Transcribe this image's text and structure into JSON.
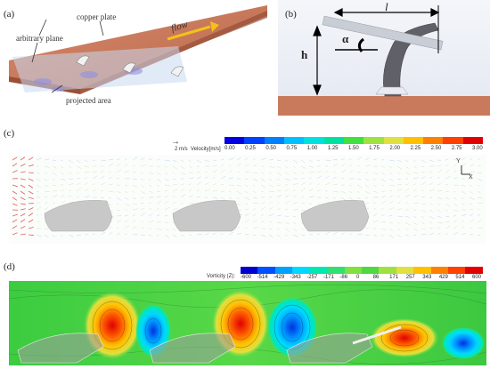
{
  "panels": {
    "a": {
      "label": "(a)",
      "copper_plate": "copper plate",
      "arbitrary_plane": "arbitrary plane",
      "flow": "flow",
      "projected_area": "projected area"
    },
    "b": {
      "label": "(b)",
      "length_symbol": "l",
      "height_symbol": "h",
      "angle_symbol": "α"
    },
    "c": {
      "label": "(c)",
      "scale_text": "2 m/s",
      "colorbar_title": "Velocity[m/s]",
      "ticks": [
        "0.00",
        "0.25",
        "0.50",
        "0.75",
        "1.00",
        "1.25",
        "1.50",
        "1.75",
        "2.00",
        "2.25",
        "2.50",
        "2.75",
        "3.00"
      ],
      "axis_y": "Y",
      "axis_x": "X"
    },
    "d": {
      "label": "(d)",
      "colorbar_title": "Vorticity (Z):",
      "ticks": [
        "-600",
        "-514",
        "-429",
        "-343",
        "-257",
        "-171",
        "-86",
        "0",
        "86",
        "171",
        "257",
        "343",
        "429",
        "514",
        "600"
      ]
    }
  },
  "colors": {
    "copper": "#c97a5c",
    "velocity_scale": [
      "#0000e0",
      "#0040ff",
      "#0080ff",
      "#00c0ff",
      "#00e0e0",
      "#00e0a0",
      "#40e040",
      "#a0e040",
      "#e0e040",
      "#ffc000",
      "#ff8000",
      "#ff4000",
      "#e00000"
    ],
    "vorticity_scale": [
      "#0000d0",
      "#0050ff",
      "#00a0ff",
      "#00d8ff",
      "#00e8b0",
      "#30e070",
      "#80e040",
      "#50d840",
      "#a0e040",
      "#e0e040",
      "#ffc000",
      "#ff8000",
      "#ff4000",
      "#e00000"
    ]
  }
}
